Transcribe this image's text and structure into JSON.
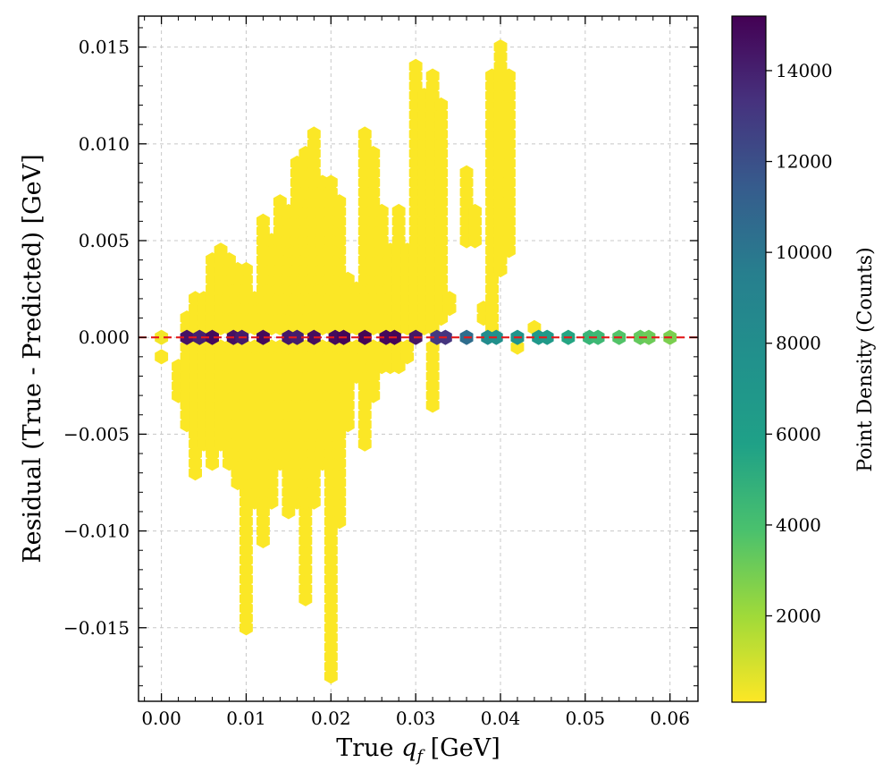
{
  "chart_data": {
    "type": "hexbin",
    "xlabel_text": "True ",
    "xlabel_math": "q",
    "xlabel_sub": "f",
    "xlabel_unit": " [GeV]",
    "ylabel": "Residual (True - Predicted) [GeV]",
    "colorbar_label": "Point Density (Counts)",
    "xlim": [
      -0.0027,
      0.0633
    ],
    "ylim": [
      -0.0188,
      0.0166
    ],
    "x_ticks": [
      0.0,
      0.01,
      0.02,
      0.03,
      0.04,
      0.05,
      0.06
    ],
    "x_tick_labels": [
      "0.00",
      "0.01",
      "0.02",
      "0.03",
      "0.04",
      "0.05",
      "0.06"
    ],
    "y_ticks": [
      0.015,
      0.01,
      0.005,
      0.0,
      -0.005,
      -0.01,
      -0.015
    ],
    "y_tick_labels": [
      "0.015",
      "0.010",
      "0.005",
      "0.000",
      "−0.005",
      "−0.010",
      "−0.015"
    ],
    "colorbar_range": [
      100,
      15200
    ],
    "colorbar_ticks": [
      2000,
      4000,
      6000,
      8000,
      10000,
      12000,
      14000
    ],
    "colorbar_tick_labels": [
      "2000",
      "4000",
      "6000",
      "8000",
      "10000",
      "12000",
      "14000"
    ],
    "colormap": "viridis_r",
    "grid": true,
    "reference_line": {
      "y": 0.0,
      "color": "#e41a1c",
      "style": "dashed"
    },
    "zero_line_bins": [
      {
        "x": 0.0,
        "count": 300
      },
      {
        "x": 0.003,
        "count": 14500
      },
      {
        "x": 0.0045,
        "count": 14000
      },
      {
        "x": 0.006,
        "count": 14800
      },
      {
        "x": 0.0085,
        "count": 14600
      },
      {
        "x": 0.0095,
        "count": 14200
      },
      {
        "x": 0.012,
        "count": 14900
      },
      {
        "x": 0.015,
        "count": 14300
      },
      {
        "x": 0.016,
        "count": 14100
      },
      {
        "x": 0.018,
        "count": 14700
      },
      {
        "x": 0.0205,
        "count": 14800
      },
      {
        "x": 0.0215,
        "count": 15000
      },
      {
        "x": 0.024,
        "count": 15100
      },
      {
        "x": 0.0265,
        "count": 14900
      },
      {
        "x": 0.0275,
        "count": 15000
      },
      {
        "x": 0.03,
        "count": 14400
      },
      {
        "x": 0.0325,
        "count": 13000
      },
      {
        "x": 0.0335,
        "count": 13200
      },
      {
        "x": 0.036,
        "count": 10500
      },
      {
        "x": 0.0385,
        "count": 8200
      },
      {
        "x": 0.0395,
        "count": 7800
      },
      {
        "x": 0.042,
        "count": 7300
      },
      {
        "x": 0.0445,
        "count": 6800
      },
      {
        "x": 0.0455,
        "count": 6600
      },
      {
        "x": 0.048,
        "count": 5500
      },
      {
        "x": 0.0505,
        "count": 4600
      },
      {
        "x": 0.0515,
        "count": 4400
      },
      {
        "x": 0.054,
        "count": 3700
      },
      {
        "x": 0.0565,
        "count": 3300
      },
      {
        "x": 0.0575,
        "count": 3100
      },
      {
        "x": 0.06,
        "count": 2800
      }
    ],
    "scatter_columns": [
      {
        "x": 0.0,
        "ymin": -0.001,
        "ymax": -0.001
      },
      {
        "x": 0.002,
        "ymin": -0.003,
        "ymax": -0.0015
      },
      {
        "x": 0.003,
        "ymin": -0.0045,
        "ymax": 0.001
      },
      {
        "x": 0.004,
        "ymin": -0.007,
        "ymax": 0.002
      },
      {
        "x": 0.005,
        "ymin": -0.0055,
        "ymax": 0.002
      },
      {
        "x": 0.006,
        "ymin": -0.0065,
        "ymax": 0.004
      },
      {
        "x": 0.007,
        "ymin": -0.0055,
        "ymax": 0.0045
      },
      {
        "x": 0.008,
        "ymin": -0.0065,
        "ymax": 0.004
      },
      {
        "x": 0.009,
        "ymin": -0.0075,
        "ymax": 0.0035
      },
      {
        "x": 0.01,
        "ymin": -0.015,
        "ymax": 0.0035
      },
      {
        "x": 0.011,
        "ymin": -0.0085,
        "ymax": 0.002
      },
      {
        "x": 0.012,
        "ymin": -0.0105,
        "ymax": 0.006
      },
      {
        "x": 0.013,
        "ymin": -0.0085,
        "ymax": 0.005
      },
      {
        "x": 0.014,
        "ymin": -0.0065,
        "ymax": 0.007
      },
      {
        "x": 0.015,
        "ymin": -0.009,
        "ymax": 0.0065
      },
      {
        "x": 0.016,
        "ymin": -0.0085,
        "ymax": 0.009
      },
      {
        "x": 0.017,
        "ymin": -0.0135,
        "ymax": 0.0095
      },
      {
        "x": 0.018,
        "ymin": -0.0085,
        "ymax": 0.0105
      },
      {
        "x": 0.019,
        "ymin": -0.0065,
        "ymax": 0.008
      },
      {
        "x": 0.02,
        "ymin": -0.0175,
        "ymax": 0.008
      },
      {
        "x": 0.021,
        "ymin": -0.0095,
        "ymax": 0.007
      },
      {
        "x": 0.022,
        "ymin": -0.0045,
        "ymax": 0.003
      },
      {
        "x": 0.023,
        "ymin": -0.002,
        "ymax": 0.0025
      },
      {
        "x": 0.024,
        "ymin": -0.0055,
        "ymax": 0.0105
      },
      {
        "x": 0.025,
        "ymin": -0.003,
        "ymax": 0.0095
      },
      {
        "x": 0.026,
        "ymin": -0.0015,
        "ymax": 0.0065
      },
      {
        "x": 0.027,
        "ymin": -0.0015,
        "ymax": 0.0045
      },
      {
        "x": 0.028,
        "ymin": -0.0015,
        "ymax": 0.0065
      },
      {
        "x": 0.029,
        "ymin": -0.001,
        "ymax": 0.0045
      },
      {
        "x": 0.03,
        "ymin": 0.0005,
        "ymax": 0.014
      },
      {
        "x": 0.031,
        "ymin": 0.0005,
        "ymax": 0.0125
      },
      {
        "x": 0.032,
        "ymin": -0.0035,
        "ymax": 0.0135
      },
      {
        "x": 0.033,
        "ymin": 0.001,
        "ymax": 0.012
      },
      {
        "x": 0.034,
        "ymin": 0.0015,
        "ymax": 0.002
      },
      {
        "x": 0.036,
        "ymin": 0.005,
        "ymax": 0.0085
      },
      {
        "x": 0.037,
        "ymin": 0.005,
        "ymax": 0.0065
      },
      {
        "x": 0.038,
        "ymin": 0.001,
        "ymax": 0.0015
      },
      {
        "x": 0.039,
        "ymin": 0.0005,
        "ymax": 0.0135
      },
      {
        "x": 0.04,
        "ymin": 0.0035,
        "ymax": 0.015
      },
      {
        "x": 0.041,
        "ymin": 0.0045,
        "ymax": 0.0135
      },
      {
        "x": 0.042,
        "ymin": -0.0005,
        "ymax": -0.0005
      },
      {
        "x": 0.044,
        "ymin": 0.0005,
        "ymax": 0.0005
      }
    ]
  }
}
